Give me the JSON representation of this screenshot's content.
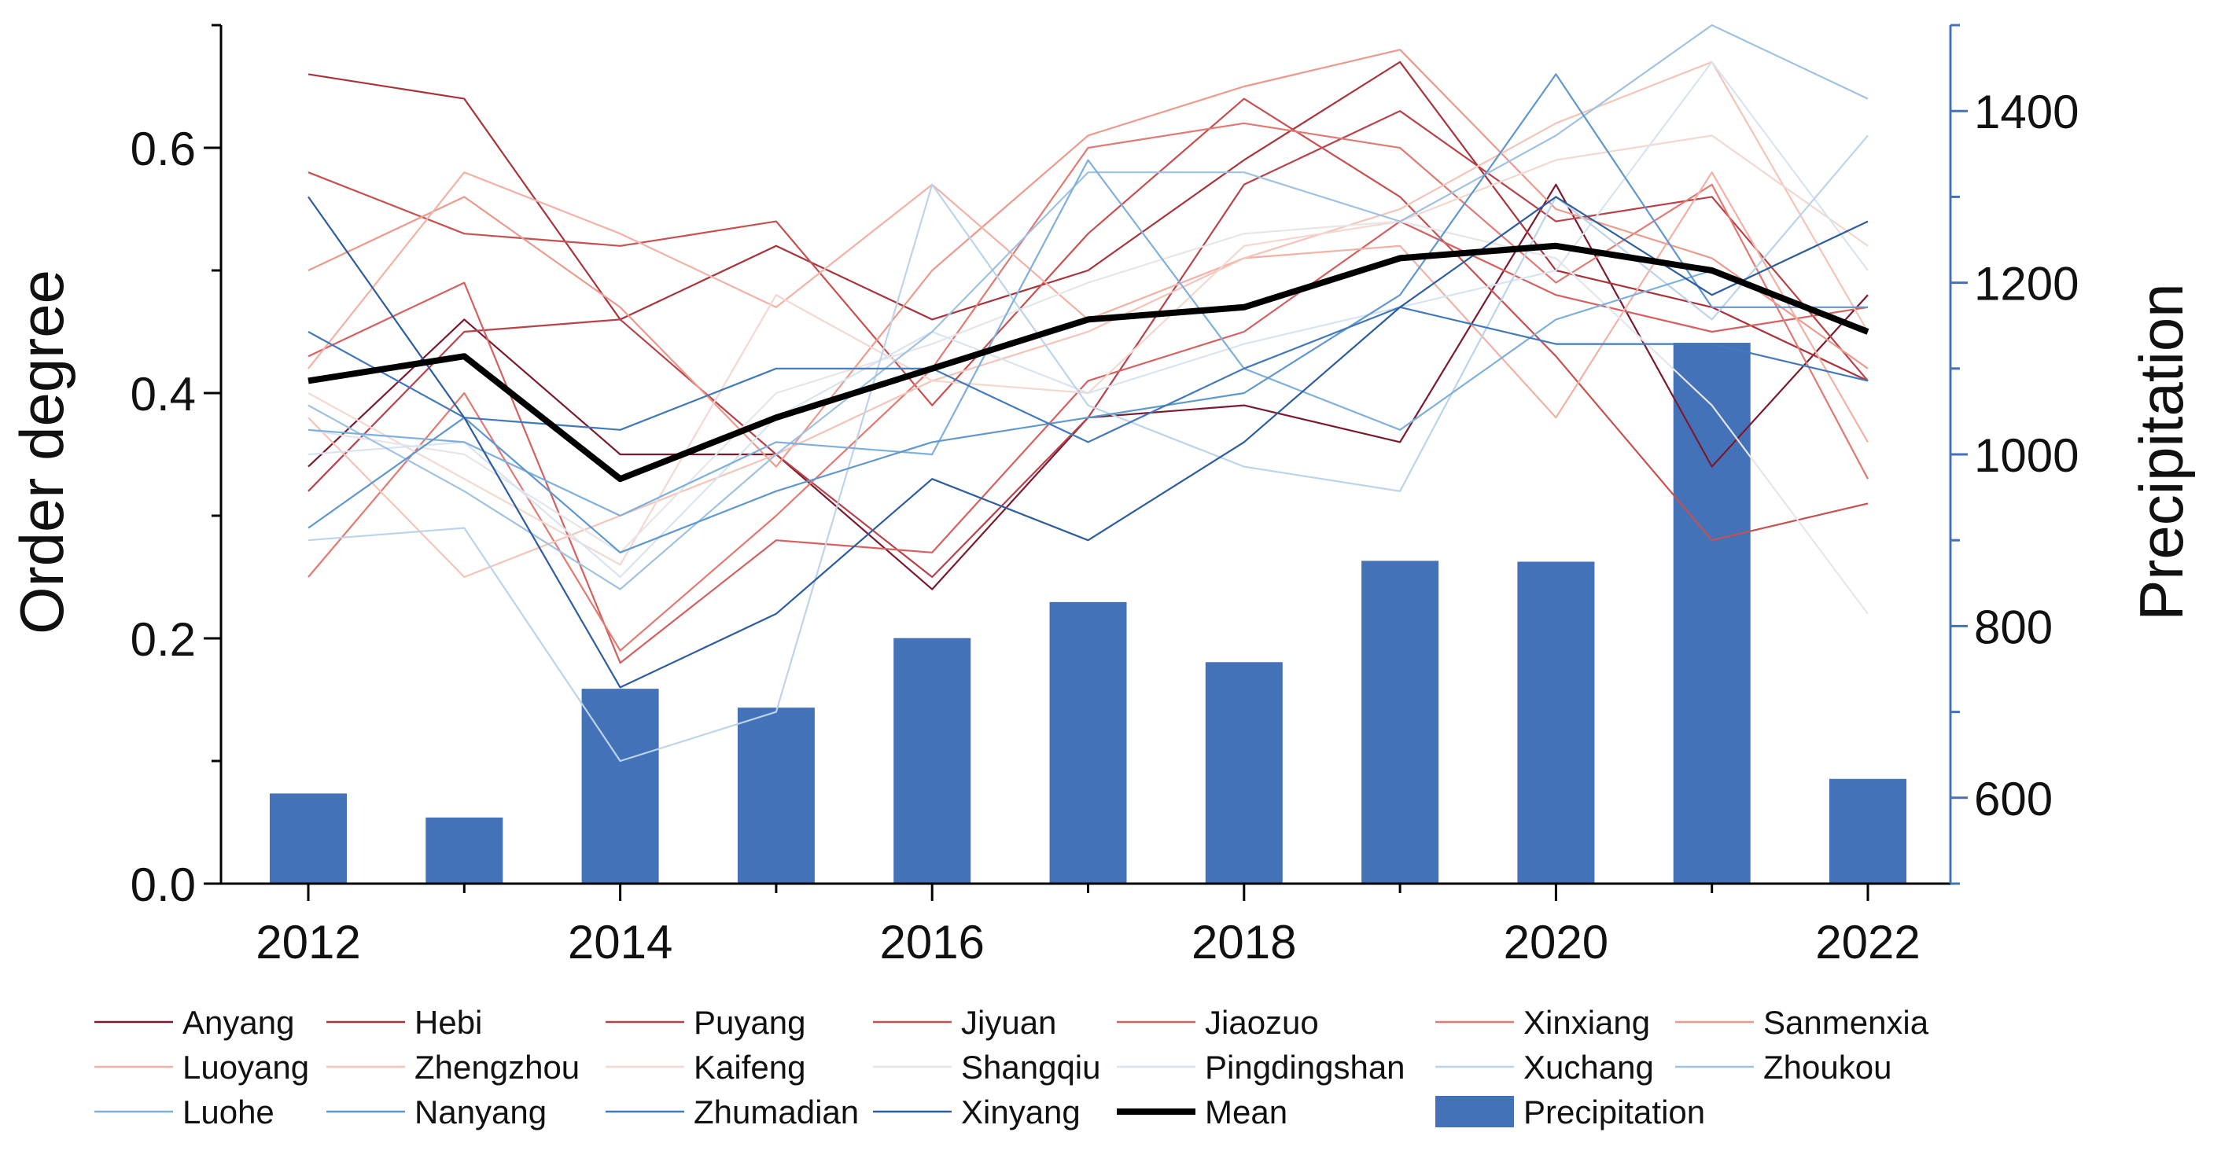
{
  "chart_data": {
    "type": "line",
    "ylabel_left": "Order degree",
    "ylabel_right": "Precipitation",
    "xlabel": "",
    "x": [
      2012,
      2013,
      2014,
      2015,
      2016,
      2017,
      2018,
      2019,
      2020,
      2021,
      2022
    ],
    "x_ticks": [
      "2012",
      "2014",
      "2016",
      "2018",
      "2020",
      "2022"
    ],
    "y_ticks_left": [
      "0.0",
      "0.2",
      "0.4",
      "0.6"
    ],
    "y_ticks_right": [
      "600",
      "800",
      "1000",
      "1200",
      "1400"
    ],
    "ylim_left": [
      0,
      0.7
    ],
    "ylim_right": [
      500,
      1500
    ],
    "series": [
      {
        "name": "Anyang",
        "color": "#7a1a2e",
        "values": [
          0.34,
          0.46,
          0.35,
          0.35,
          0.24,
          0.38,
          0.39,
          0.36,
          0.57,
          0.34,
          0.48
        ]
      },
      {
        "name": "Hebi",
        "color": "#a8333a",
        "values": [
          0.66,
          0.64,
          0.46,
          0.52,
          0.46,
          0.5,
          0.59,
          0.67,
          0.5,
          0.47,
          0.41
        ]
      },
      {
        "name": "Puyang",
        "color": "#b8424a",
        "values": [
          0.32,
          0.45,
          0.46,
          0.35,
          0.25,
          0.38,
          0.57,
          0.63,
          0.54,
          0.56,
          0.41
        ]
      },
      {
        "name": "Jiyuan",
        "color": "#c75050",
        "values": [
          0.58,
          0.53,
          0.52,
          0.54,
          0.39,
          0.53,
          0.64,
          0.56,
          0.43,
          0.28,
          0.31
        ]
      },
      {
        "name": "Jiaozuo",
        "color": "#d56060",
        "values": [
          0.43,
          0.49,
          0.18,
          0.28,
          0.27,
          0.41,
          0.45,
          0.54,
          0.48,
          0.45,
          0.47
        ]
      },
      {
        "name": "Xinxiang",
        "color": "#e07a72",
        "values": [
          0.25,
          0.4,
          0.19,
          0.3,
          0.42,
          0.6,
          0.62,
          0.6,
          0.49,
          0.57,
          0.33
        ]
      },
      {
        "name": "Sanmenxia",
        "color": "#eb9a8c",
        "values": [
          0.5,
          0.56,
          0.47,
          0.34,
          0.5,
          0.61,
          0.65,
          0.68,
          0.55,
          0.51,
          0.42
        ]
      },
      {
        "name": "Luoyang",
        "color": "#f2b1a4",
        "values": [
          0.42,
          0.58,
          0.53,
          0.47,
          0.57,
          0.46,
          0.51,
          0.52,
          0.38,
          0.58,
          0.36
        ]
      },
      {
        "name": "Zhengzhou",
        "color": "#f5c4b8",
        "values": [
          0.38,
          0.25,
          0.3,
          0.35,
          0.41,
          0.45,
          0.51,
          0.55,
          0.62,
          0.67,
          0.45
        ]
      },
      {
        "name": "Kaifeng",
        "color": "#f2d8d0",
        "values": [
          0.4,
          0.33,
          0.26,
          0.48,
          0.41,
          0.4,
          0.52,
          0.54,
          0.59,
          0.61,
          0.52
        ]
      },
      {
        "name": "Shangqiu",
        "color": "#e6e6ea",
        "values": [
          0.37,
          0.35,
          0.27,
          0.4,
          0.44,
          0.49,
          0.53,
          0.54,
          0.51,
          0.39,
          0.22
        ]
      },
      {
        "name": "Pingdingshan",
        "color": "#d8e4f0",
        "values": [
          0.35,
          0.36,
          0.25,
          0.38,
          0.45,
          0.4,
          0.44,
          0.47,
          0.5,
          0.67,
          0.5
        ]
      },
      {
        "name": "Xuchang",
        "color": "#bcd4ea",
        "values": [
          0.28,
          0.29,
          0.1,
          0.14,
          0.57,
          0.39,
          0.34,
          0.32,
          0.56,
          0.46,
          0.61
        ]
      },
      {
        "name": "Zhoukou",
        "color": "#9fc2e2",
        "values": [
          0.39,
          0.32,
          0.24,
          0.35,
          0.45,
          0.58,
          0.58,
          0.54,
          0.61,
          0.7,
          0.64
        ]
      },
      {
        "name": "Luohe",
        "color": "#7fafdc",
        "values": [
          0.37,
          0.36,
          0.3,
          0.36,
          0.35,
          0.59,
          0.42,
          0.37,
          0.46,
          0.5,
          0.45
        ]
      },
      {
        "name": "Nanyang",
        "color": "#5f97cf",
        "values": [
          0.29,
          0.38,
          0.27,
          0.32,
          0.36,
          0.38,
          0.4,
          0.48,
          0.66,
          0.47,
          0.47
        ]
      },
      {
        "name": "Zhumadian",
        "color": "#4279bb",
        "values": [
          0.45,
          0.38,
          0.37,
          0.42,
          0.42,
          0.36,
          0.42,
          0.47,
          0.44,
          0.44,
          0.41
        ]
      },
      {
        "name": "Xinyang",
        "color": "#2d5d9f",
        "values": [
          0.56,
          0.38,
          0.16,
          0.22,
          0.33,
          0.28,
          0.36,
          0.47,
          0.56,
          0.48,
          0.54
        ]
      },
      {
        "name": "Mean",
        "color": "#000000",
        "values": [
          0.41,
          0.43,
          0.33,
          0.38,
          0.42,
          0.46,
          0.47,
          0.51,
          0.52,
          0.5,
          0.45
        ]
      }
    ],
    "bars": {
      "name": "Precipitation",
      "color": "#4472b8",
      "axis": "right",
      "values": [
        605,
        577,
        727,
        705,
        786,
        828,
        758,
        876,
        875,
        1130,
        622
      ]
    },
    "legend": {
      "position": "bottom",
      "items": [
        "Anyang",
        "Hebi",
        "Puyang",
        "Jiyuan",
        "Jiaozuo",
        "Xinxiang",
        "Sanmenxia",
        "Luoyang",
        "Zhengzhou",
        "Kaifeng",
        "Shangqiu",
        "Pingdingshan",
        "Xuchang",
        "Zhoukou",
        "Luohe",
        "Nanyang",
        "Zhumadian",
        "Xinyang",
        "Mean",
        "Precipitation"
      ]
    }
  }
}
